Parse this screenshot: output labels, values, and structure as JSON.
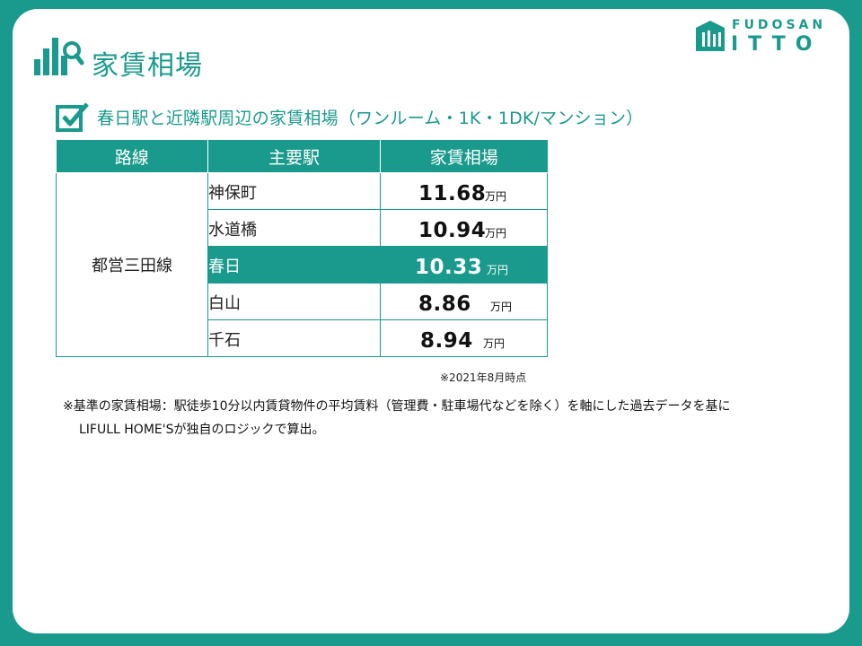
{
  "header": {
    "title": "家賃相場",
    "icon": "bar-chart-search-icon"
  },
  "logo": {
    "line1": "FUDOSAN",
    "line2": "ITTO",
    "icon": "house-logo-icon"
  },
  "subtitle": {
    "icon": "checkbox-checked-icon",
    "text": "春日駅と近隣駅周辺の家賃相場（ワンルーム・1K・1DK/マンション）"
  },
  "table": {
    "headers": [
      "路線",
      "主要駅",
      "家賃相場"
    ],
    "line": "都営三田線",
    "rows": [
      {
        "station": "神保町",
        "price": "11.68",
        "unit": "万円",
        "highlight": false
      },
      {
        "station": "水道橋",
        "price": "10.94",
        "unit": "万円",
        "highlight": false
      },
      {
        "station": "春日",
        "price": "10.33",
        "unit": "万円",
        "highlight": true
      },
      {
        "station": "白山",
        "price": "8.86",
        "unit": "万円",
        "highlight": false
      },
      {
        "station": "千石",
        "price": "8.94",
        "unit": "万円",
        "highlight": false
      }
    ]
  },
  "as_of": "※2021年8月時点",
  "notes": {
    "line1": "※基準の家賃相場：駅徒歩10分以内賃貸物件の平均賃料（管理費・駐車場代などを除く）を軸にした過去データを基に",
    "line2": "LIFULL HOME'Sが独自のロジックで算出。"
  },
  "colors": {
    "accent": "#1a9a8c",
    "background": "#ffffff"
  }
}
